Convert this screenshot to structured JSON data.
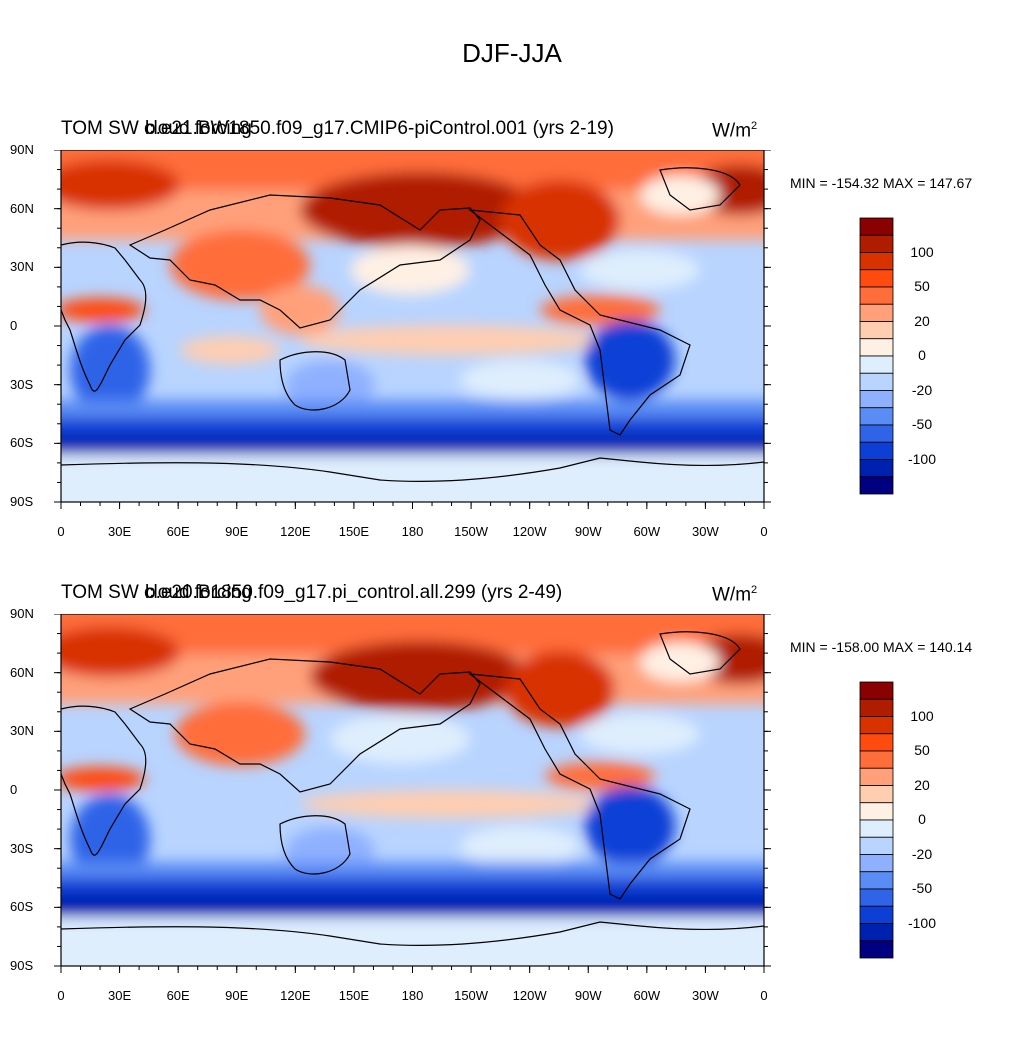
{
  "title": "DJF-JJA",
  "units": "W/m",
  "units_sup": "2",
  "lat_labels": [
    "90N",
    "60N",
    "30N",
    "0",
    "30S",
    "60S",
    "90S"
  ],
  "lon_labels": [
    "0",
    "30E",
    "60E",
    "90E",
    "120E",
    "150E",
    "180",
    "150W",
    "120W",
    "90W",
    "60W",
    "30W",
    "0"
  ],
  "colorbar": {
    "colors": [
      "#8b0000",
      "#b01c00",
      "#d83200",
      "#ff4a10",
      "#ff6d3a",
      "#ffa07a",
      "#ffcdb0",
      "#fff0e4",
      "#dfeefd",
      "#b8d4ff",
      "#8fb0ff",
      "#5a8cf5",
      "#2f64e8",
      "#0b3fd6",
      "#0020b0",
      "#000080"
    ],
    "labels": [
      "100",
      "50",
      "20",
      "0",
      "-20",
      "-50",
      "-100"
    ]
  },
  "panels": [
    {
      "left_string": "TOM SW cloud forcing",
      "center_string": "b.e21.BW1850.f09_g17.CMIP6-piControl.001 (yrs 2-19)",
      "min_max": "MIN = -154.32 MAX = 147.67"
    },
    {
      "left_string": "TOM SW cloud forcing",
      "center_string": "b.e20.B1850.f09_g17.pi_control.all.299 (yrs 2-49)",
      "min_max": "MIN = -158.00 MAX = 140.14"
    }
  ]
}
